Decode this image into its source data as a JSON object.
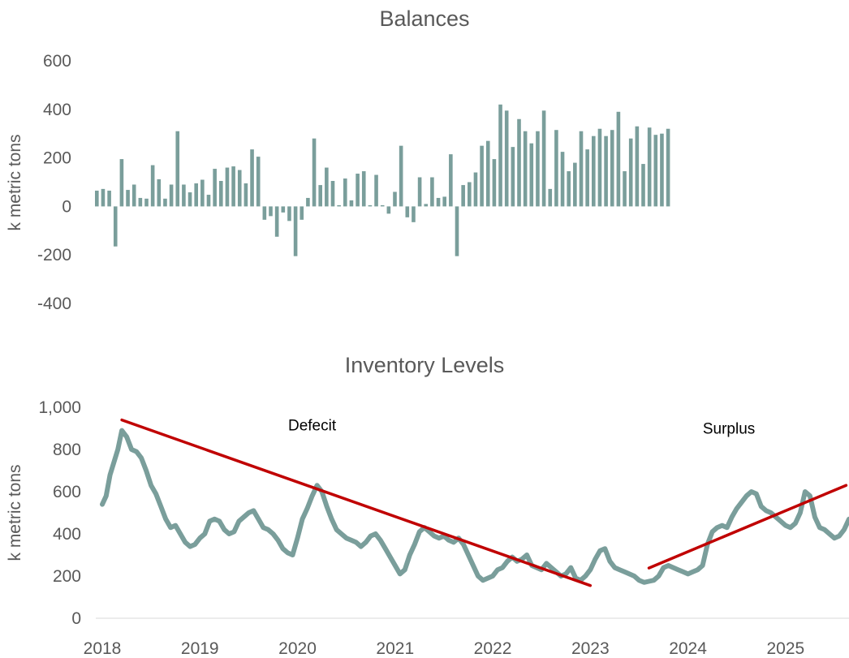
{
  "chart_data": [
    {
      "type": "bar",
      "title": "Balances",
      "xlabel": "",
      "ylabel": "k metric tons",
      "ylim": [
        -400,
        600
      ],
      "yticks": [
        "600",
        "400",
        "200",
        "0",
        "-200",
        "-400"
      ],
      "ytick_values": [
        600,
        400,
        200,
        0,
        -200,
        -400
      ],
      "series": [
        {
          "name": "Balances",
          "color": "#7a9e9b",
          "values": [
            65,
            72,
            65,
            -165,
            195,
            68,
            90,
            35,
            32,
            170,
            112,
            32,
            90,
            310,
            90,
            58,
            95,
            110,
            48,
            155,
            105,
            160,
            165,
            150,
            95,
            235,
            205,
            -55,
            -40,
            -125,
            -25,
            -60,
            -205,
            -55,
            35,
            280,
            88,
            160,
            105,
            5,
            115,
            25,
            135,
            145,
            5,
            130,
            5,
            -30,
            60,
            250,
            -45,
            -65,
            120,
            10,
            120,
            35,
            40,
            215,
            -205,
            88,
            100,
            140,
            250,
            270,
            195,
            420,
            395,
            245,
            360,
            310,
            260,
            310,
            395,
            72,
            315,
            225,
            145,
            180,
            310,
            235,
            290,
            320,
            290,
            315,
            390,
            145,
            280,
            330,
            175,
            325,
            295,
            300,
            320
          ]
        }
      ]
    },
    {
      "type": "line",
      "title": "Inventory Levels",
      "xlabel": "",
      "ylabel": "k metric tons",
      "ylim": [
        0,
        1000
      ],
      "xlim": [
        2018,
        2025.65
      ],
      "yticks": [
        "1,000",
        "800",
        "600",
        "400",
        "200",
        "0"
      ],
      "ytick_values": [
        1000,
        800,
        600,
        400,
        200,
        0
      ],
      "xticks": [
        "2018",
        "2019",
        "2020",
        "2021",
        "2022",
        "2023",
        "2024",
        "2025"
      ],
      "xtick_values": [
        2018,
        2019,
        2020,
        2021,
        2022,
        2023,
        2024,
        2025
      ],
      "series": [
        {
          "name": "Inventory",
          "color": "#7a9e9b",
          "x": [
            2018.0,
            2018.04,
            2018.08,
            2018.12,
            2018.16,
            2018.2,
            2018.25,
            2018.3,
            2018.35,
            2018.4,
            2018.45,
            2018.5,
            2018.55,
            2018.6,
            2018.65,
            2018.7,
            2018.75,
            2018.8,
            2018.85,
            2018.9,
            2018.95,
            2019.0,
            2019.05,
            2019.1,
            2019.15,
            2019.2,
            2019.25,
            2019.3,
            2019.35,
            2019.4,
            2019.45,
            2019.5,
            2019.55,
            2019.6,
            2019.65,
            2019.7,
            2019.75,
            2019.8,
            2019.85,
            2019.9,
            2019.95,
            2020.0,
            2020.05,
            2020.1,
            2020.15,
            2020.2,
            2020.25,
            2020.3,
            2020.35,
            2020.4,
            2020.45,
            2020.5,
            2020.55,
            2020.6,
            2020.65,
            2020.7,
            2020.75,
            2020.8,
            2020.85,
            2020.9,
            2020.95,
            2021.0,
            2021.05,
            2021.1,
            2021.15,
            2021.2,
            2021.25,
            2021.3,
            2021.35,
            2021.4,
            2021.45,
            2021.5,
            2021.55,
            2021.6,
            2021.65,
            2021.7,
            2021.75,
            2021.8,
            2021.85,
            2021.9,
            2021.95,
            2022.0,
            2022.05,
            2022.1,
            2022.15,
            2022.2,
            2022.25,
            2022.3,
            2022.35,
            2022.4,
            2022.45,
            2022.5,
            2022.55,
            2022.6,
            2022.65,
            2022.7,
            2022.75,
            2022.8,
            2022.85,
            2022.9,
            2022.95,
            2023.0,
            2023.05,
            2023.1,
            2023.15,
            2023.2,
            2023.25,
            2023.3,
            2023.35,
            2023.4,
            2023.45,
            2023.5,
            2023.55,
            2023.6,
            2023.65,
            2023.7,
            2023.75,
            2023.8,
            2023.85,
            2023.9,
            2023.95,
            2024.0,
            2024.05,
            2024.1,
            2024.15,
            2024.2,
            2024.25,
            2024.3,
            2024.35,
            2024.4,
            2024.45,
            2024.5,
            2024.55,
            2024.6,
            2024.65,
            2024.7,
            2024.75,
            2024.8,
            2024.85,
            2024.9,
            2024.95,
            2025.0,
            2025.05,
            2025.1,
            2025.15,
            2025.2,
            2025.25,
            2025.3,
            2025.35,
            2025.4,
            2025.45,
            2025.5,
            2025.55,
            2025.6,
            2025.65
          ],
          "y": [
            540,
            580,
            680,
            740,
            800,
            890,
            860,
            800,
            790,
            760,
            700,
            630,
            590,
            530,
            470,
            430,
            440,
            400,
            360,
            340,
            350,
            380,
            400,
            460,
            470,
            460,
            420,
            400,
            410,
            460,
            480,
            500,
            510,
            470,
            430,
            420,
            400,
            370,
            330,
            310,
            300,
            380,
            470,
            520,
            580,
            630,
            600,
            530,
            470,
            420,
            400,
            380,
            370,
            360,
            340,
            360,
            390,
            400,
            370,
            330,
            290,
            250,
            210,
            230,
            300,
            350,
            410,
            430,
            410,
            390,
            380,
            390,
            370,
            360,
            380,
            350,
            300,
            250,
            200,
            180,
            190,
            200,
            230,
            240,
            270,
            290,
            270,
            280,
            300,
            250,
            240,
            230,
            260,
            240,
            220,
            200,
            210,
            240,
            190,
            180,
            200,
            230,
            280,
            320,
            330,
            270,
            240,
            230,
            220,
            210,
            200,
            180,
            170,
            175,
            180,
            200,
            240,
            250,
            240,
            230,
            220,
            210,
            220,
            230,
            250,
            350,
            410,
            430,
            440,
            430,
            480,
            520,
            550,
            580,
            600,
            590,
            530,
            510,
            500,
            480,
            460,
            440,
            430,
            450,
            500,
            600,
            580,
            480,
            430,
            420,
            400,
            380,
            390,
            420,
            470
          ]
        },
        {
          "name": "Defecit trend",
          "color": "#c00000",
          "x": [
            2018.2,
            2023.0
          ],
          "y": [
            940,
            155
          ]
        },
        {
          "name": "Surplus trend",
          "color": "#c00000",
          "x": [
            2023.6,
            2025.62
          ],
          "y": [
            238,
            630
          ]
        }
      ],
      "annotations": [
        {
          "text": "Defecit",
          "x": 2020.15,
          "y": 890
        },
        {
          "text": "Surplus",
          "x": 2024.42,
          "y": 875
        }
      ]
    }
  ]
}
